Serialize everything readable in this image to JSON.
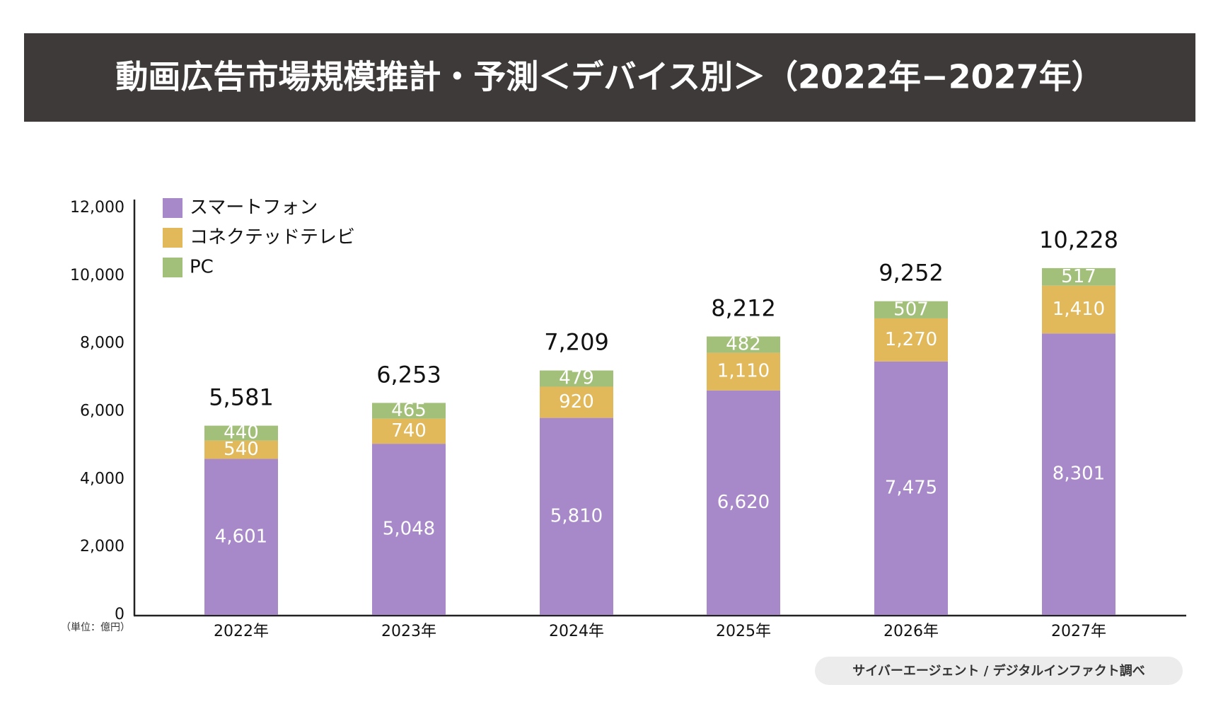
{
  "chart_data": {
    "type": "stacked-bar",
    "title": "動画広告市場規模推計・予測＜デバイス別＞（2022年−2027年）",
    "unit_note": "（単位：億円）",
    "source": "サイバーエージェント / デジタルインファクト調べ",
    "categories": [
      "2022年",
      "2023年",
      "2024年",
      "2025年",
      "2026年",
      "2027年"
    ],
    "series": [
      {
        "name": "スマートフォン",
        "color": "#a788c8",
        "values": [
          4601,
          5048,
          5810,
          6620,
          7475,
          8301
        ],
        "value_labels": [
          "4,601",
          "5,048",
          "5,810",
          "6,620",
          "7,475",
          "8,301"
        ]
      },
      {
        "name": "コネクテッドテレビ",
        "color": "#e2b95a",
        "values": [
          540,
          740,
          920,
          1110,
          1270,
          1410
        ],
        "value_labels": [
          "540",
          "740",
          "920",
          "1,110",
          "1,270",
          "1,410"
        ]
      },
      {
        "name": "PC",
        "color": "#a3c07a",
        "values": [
          440,
          465,
          479,
          482,
          507,
          517
        ],
        "value_labels": [
          "440",
          "465",
          "479",
          "482",
          "507",
          "517"
        ]
      }
    ],
    "totals": [
      {
        "value": 5581,
        "label": "5,581"
      },
      {
        "value": 6253,
        "label": "6,253"
      },
      {
        "value": 7209,
        "label": "7,209"
      },
      {
        "value": 8212,
        "label": "8,212"
      },
      {
        "value": 9252,
        "label": "9,252"
      },
      {
        "value": 10228,
        "label": "10,228"
      }
    ],
    "ylim": [
      0,
      12000
    ],
    "yticks": [
      0,
      {
        "value": 2000,
        "label": "2,000"
      },
      {
        "value": 4000,
        "label": "4,000"
      },
      {
        "value": 6000,
        "label": "6,000"
      },
      {
        "value": 8000,
        "label": "8,000"
      },
      {
        "value": 10000,
        "label": "10,000"
      },
      {
        "value": 12000,
        "label": "12,000"
      }
    ],
    "legend": "top-left"
  }
}
